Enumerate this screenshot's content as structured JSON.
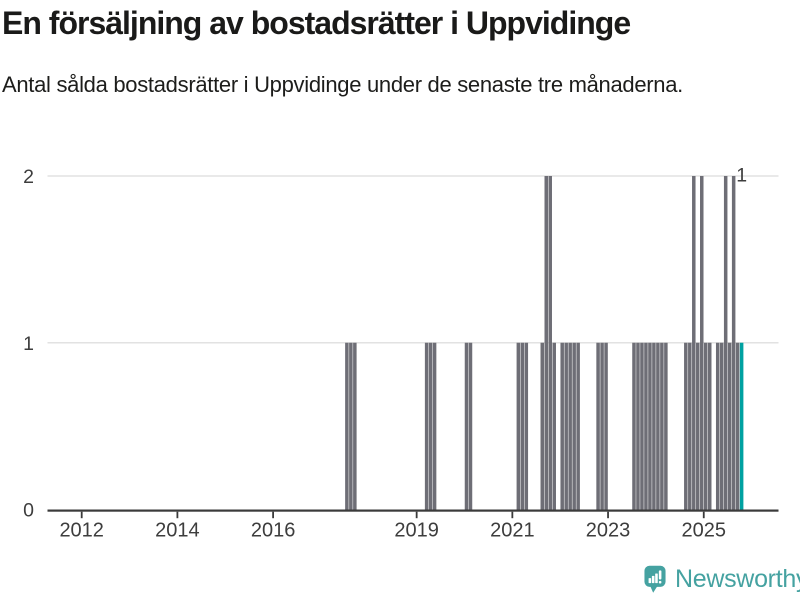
{
  "header": {
    "title": "En försäljning av bostadsrätter i Uppvidinge",
    "subtitle": "Antal sålda bostadsrätter i Uppvidinge under de senaste tre månaderna."
  },
  "footer": {
    "brand": "Newsworthy"
  },
  "colors": {
    "bar": "#6e6e76",
    "highlight": "#00a1a1",
    "axis": "#3a3a3a",
    "grid": "#e2e2e2",
    "tick_text": "#3d3d3d",
    "annotation_text": "#3d3d3d",
    "title_text": "#1a1a19",
    "brand": "#45a2a1"
  },
  "chart_data": {
    "type": "bar",
    "title": "En försäljning av bostadsrätter i Uppvidinge",
    "subtitle": "Antal sålda bostadsrätter i Uppvidinge under de senaste tre månaderna.",
    "xlabel": "",
    "ylabel": "",
    "ylim": [
      0,
      2
    ],
    "y_ticks": [
      0,
      1,
      2
    ],
    "x_tick_years": [
      2012,
      2014,
      2016,
      2019,
      2021,
      2023,
      2025
    ],
    "grid": "horizontal",
    "legend": "none",
    "unlisted_months_value": 0,
    "series": [
      [
        "2017-07",
        1
      ],
      [
        "2017-08",
        1
      ],
      [
        "2017-09",
        1
      ],
      [
        "2019-03",
        1
      ],
      [
        "2019-04",
        1
      ],
      [
        "2019-05",
        1
      ],
      [
        "2020-01",
        1
      ],
      [
        "2020-02",
        1
      ],
      [
        "2021-02",
        1
      ],
      [
        "2021-03",
        1
      ],
      [
        "2021-04",
        1
      ],
      [
        "2021-08",
        1
      ],
      [
        "2021-09",
        2
      ],
      [
        "2021-10",
        2
      ],
      [
        "2021-11",
        1
      ],
      [
        "2022-01",
        1
      ],
      [
        "2022-02",
        1
      ],
      [
        "2022-03",
        1
      ],
      [
        "2022-04",
        1
      ],
      [
        "2022-05",
        1
      ],
      [
        "2022-10",
        1
      ],
      [
        "2022-11",
        1
      ],
      [
        "2022-12",
        1
      ],
      [
        "2023-07",
        1
      ],
      [
        "2023-08",
        1
      ],
      [
        "2023-09",
        1
      ],
      [
        "2023-10",
        1
      ],
      [
        "2023-11",
        1
      ],
      [
        "2023-12",
        1
      ],
      [
        "2024-01",
        1
      ],
      [
        "2024-02",
        1
      ],
      [
        "2024-03",
        1
      ],
      [
        "2024-08",
        1
      ],
      [
        "2024-09",
        1
      ],
      [
        "2024-10",
        2
      ],
      [
        "2024-11",
        1
      ],
      [
        "2024-12",
        2
      ],
      [
        "2025-01",
        1
      ],
      [
        "2025-02",
        1
      ],
      [
        "2025-04",
        1
      ],
      [
        "2025-05",
        1
      ],
      [
        "2025-06",
        2
      ],
      [
        "2025-07",
        1
      ],
      [
        "2025-08",
        2
      ],
      [
        "2025-09",
        1
      ],
      [
        "2025-10",
        1
      ]
    ],
    "highlight": {
      "month": "2025-10",
      "value": 1,
      "label": "1"
    }
  }
}
